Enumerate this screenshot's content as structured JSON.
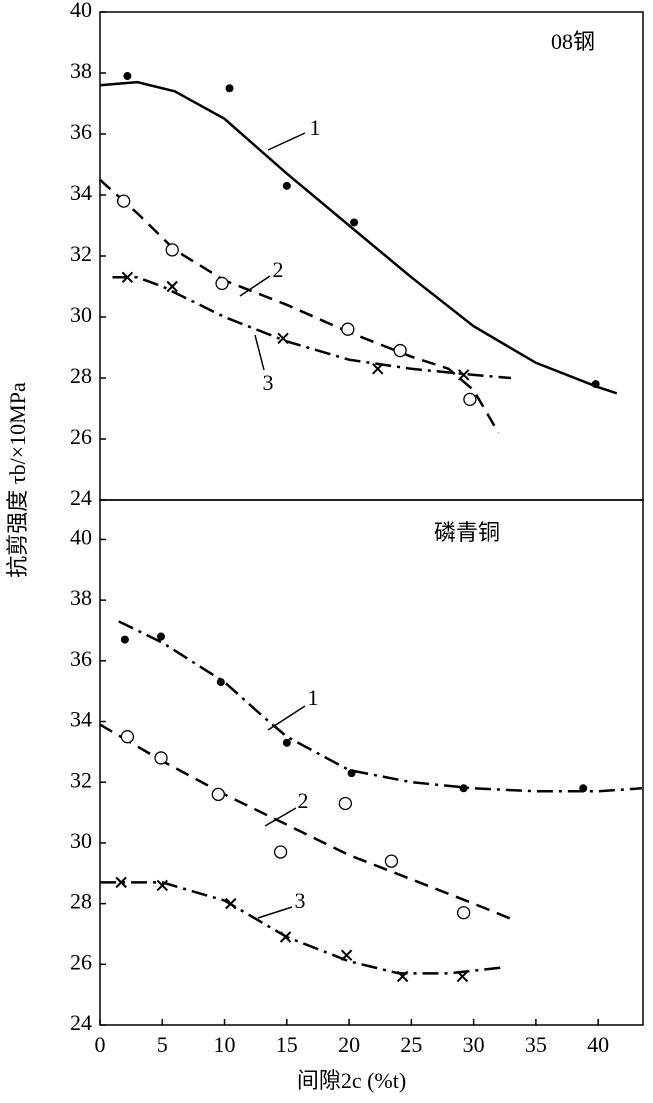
{
  "chart_data": [
    {
      "type": "line",
      "title": "08钢",
      "ylabel": "抗剪强度 τb/×10MPa",
      "xlim": [
        0,
        43.6
      ],
      "ylim": [
        24,
        40
      ],
      "yticks": [
        24,
        26,
        28,
        30,
        32,
        34,
        36,
        38,
        40
      ],
      "series": [
        {
          "name": "1",
          "color": "#000000",
          "marker": "dot",
          "line": "solid",
          "x": [
            2.2,
            10.4,
            15.0,
            20.4,
            39.8
          ],
          "values": [
            37.9,
            37.5,
            34.3,
            33.1,
            27.8
          ],
          "curve_x": [
            0,
            3,
            6,
            10,
            15,
            20,
            25,
            30,
            35,
            40,
            41.5
          ],
          "curve_values": [
            37.6,
            37.7,
            37.4,
            36.5,
            34.7,
            33.0,
            31.3,
            29.7,
            28.5,
            27.7,
            27.5
          ]
        },
        {
          "name": "2",
          "color": "#000000",
          "marker": "circle",
          "line": "dashed",
          "x": [
            1.9,
            5.8,
            9.8,
            19.9,
            24.1,
            29.7
          ],
          "values": [
            33.8,
            32.2,
            31.1,
            29.6,
            28.9,
            27.3
          ],
          "curve_x": [
            0,
            3,
            6,
            10,
            15,
            20,
            25,
            28,
            30,
            32
          ],
          "curve_values": [
            34.5,
            33.4,
            32.2,
            31.2,
            30.4,
            29.5,
            28.7,
            28.3,
            27.6,
            26.2
          ]
        },
        {
          "name": "3",
          "color": "#000000",
          "marker": "cross",
          "line": "dashdot",
          "x": [
            2.2,
            5.8,
            14.7,
            22.3,
            29.2
          ],
          "values": [
            31.3,
            31.0,
            29.3,
            28.3,
            28.1
          ],
          "curve_x": [
            1,
            3,
            5,
            10,
            15,
            20,
            25,
            30,
            33
          ],
          "curve_values": [
            31.3,
            31.3,
            31.0,
            30.0,
            29.2,
            28.6,
            28.3,
            28.1,
            28.0
          ]
        }
      ]
    },
    {
      "type": "line",
      "title": "磷青铜",
      "xlabel": "间隙2c (%t)",
      "xlim": [
        0,
        43.6
      ],
      "xticks": [
        0,
        5,
        10,
        15,
        20,
        25,
        30,
        35,
        40
      ],
      "ylim": [
        24,
        41.3
      ],
      "yticks": [
        24,
        26,
        28,
        30,
        32,
        34,
        36,
        38,
        40
      ],
      "series": [
        {
          "name": "1",
          "color": "#000000",
          "marker": "dot",
          "line": "dashdot",
          "x": [
            2.0,
            4.9,
            9.7,
            15.0,
            20.2,
            29.2,
            38.8
          ],
          "values": [
            36.7,
            36.8,
            35.3,
            33.3,
            32.3,
            31.8,
            31.8
          ],
          "curve_x": [
            1.5,
            5,
            10,
            13,
            15,
            20,
            25,
            30,
            35,
            40,
            43.5
          ],
          "curve_values": [
            37.3,
            36.6,
            35.3,
            34.2,
            33.5,
            32.4,
            32.0,
            31.8,
            31.7,
            31.7,
            31.8
          ]
        },
        {
          "name": "2",
          "color": "#000000",
          "marker": "circle",
          "line": "dashed",
          "x": [
            2.2,
            4.9,
            9.5,
            14.5,
            19.7,
            23.4,
            29.2
          ],
          "values": [
            33.5,
            32.8,
            31.6,
            29.7,
            31.3,
            29.4,
            27.7
          ],
          "curve_x": [
            0,
            5,
            10,
            15,
            20,
            25,
            30,
            33
          ],
          "curve_values": [
            33.9,
            32.7,
            31.6,
            30.6,
            29.6,
            28.8,
            28.0,
            27.5
          ]
        },
        {
          "name": "3",
          "color": "#000000",
          "marker": "cross",
          "line": "dashdot",
          "x": [
            1.7,
            5.0,
            10.5,
            14.9,
            19.8,
            24.3,
            29.1
          ],
          "values": [
            28.7,
            28.6,
            28.0,
            26.9,
            26.3,
            25.6,
            25.6
          ],
          "curve_x": [
            0,
            5,
            10,
            15,
            20,
            24,
            28,
            32.5
          ],
          "curve_values": [
            28.7,
            28.7,
            28.1,
            26.9,
            26.1,
            25.7,
            25.7,
            25.9
          ]
        }
      ]
    }
  ]
}
